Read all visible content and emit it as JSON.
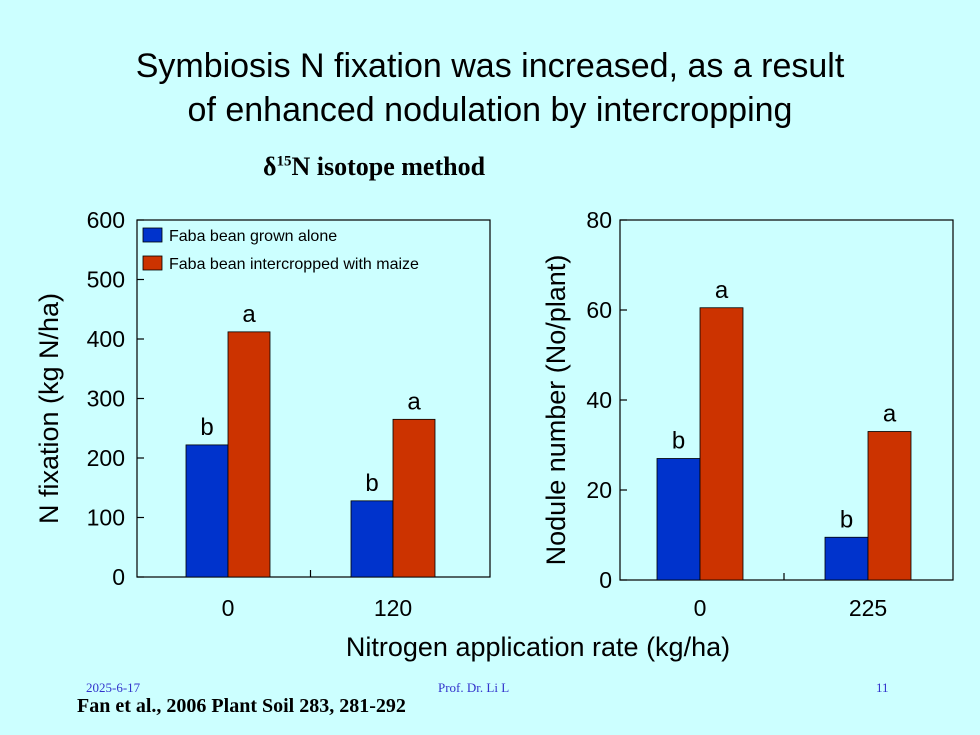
{
  "slide": {
    "title_line1": "Symbiosis N fixation was increased, as a result",
    "title_line2": "of enhanced nodulation by intercropping",
    "method_symbol": "δ",
    "method_superscript": "15",
    "method_text": "N isotope method",
    "shared_xlabel": "Nitrogen application rate (kg/ha)",
    "date": "2025-6-17",
    "author": "Prof. Dr. Li L",
    "page_number": "11",
    "citation": "Fan et al., 2006 Plant Soil 283, 281-292"
  },
  "colors": {
    "background": "#ccffff",
    "series_alone": "#0033cc",
    "series_intercropped": "#cc3300",
    "footer_text": "#3333cc"
  },
  "chart_data": [
    {
      "type": "bar",
      "categories": [
        "0",
        "120"
      ],
      "series": [
        {
          "name": "Faba bean grown alone",
          "values": [
            222,
            128
          ],
          "letters": [
            "b",
            "b"
          ]
        },
        {
          "name": "Faba bean intercropped with maize",
          "values": [
            412,
            265
          ],
          "letters": [
            "a",
            "a"
          ]
        }
      ],
      "ylabel": "N fixation (kg N/ha)",
      "ylim": [
        0,
        600
      ],
      "yticks": [
        0,
        100,
        200,
        300,
        400,
        500,
        600
      ],
      "legend": "top-left",
      "grid": false
    },
    {
      "type": "bar",
      "categories": [
        "0",
        "225"
      ],
      "series": [
        {
          "name": "Faba bean grown alone",
          "values": [
            27,
            9.5
          ],
          "letters": [
            "b",
            "b"
          ]
        },
        {
          "name": "Faba bean intercropped with maize",
          "values": [
            60.5,
            33
          ],
          "letters": [
            "a",
            "a"
          ]
        }
      ],
      "ylabel": "Nodule number (No/plant)",
      "ylim": [
        0,
        80
      ],
      "yticks": [
        0,
        20,
        40,
        60,
        80
      ],
      "grid": false
    }
  ]
}
